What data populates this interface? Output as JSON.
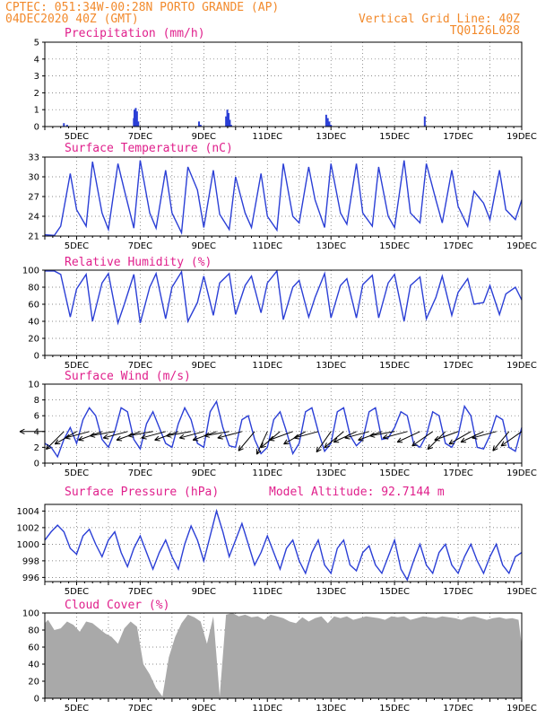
{
  "header": {
    "line1": "CPTEC:  051:34W-00:28N  PORTO GRANDE (AP)",
    "line2": "04DEC2020 40Z (GMT)",
    "right1": "Vertical Grid Line: 40Z",
    "right2": "TQ0126L028"
  },
  "colors": {
    "line": "#2b3fd6",
    "title": "#e0208c",
    "header": "#f28a2c",
    "cloud": "#a9a9a9"
  },
  "chart_data": [
    {
      "id": "precip",
      "type": "bar",
      "title": "Precipitation (mm/h)",
      "ylim": [
        0,
        5
      ],
      "yticks": [
        0,
        1,
        2,
        3,
        4,
        5
      ],
      "x_ticks": [
        "5DEC",
        "7DEC",
        "9DEC",
        "11DEC",
        "13DEC",
        "15DEC",
        "17DEC",
        "19DEC"
      ],
      "x": [
        4.6,
        4.7,
        6.8,
        6.82,
        6.86,
        6.9,
        6.94,
        8.85,
        8.9,
        9.7,
        9.74,
        9.78,
        9.82,
        9.86,
        12.85,
        12.9,
        12.95,
        13.0,
        15.95
      ],
      "values": [
        0.2,
        0.1,
        0.5,
        1.0,
        1.1,
        0.9,
        0.3,
        0.3,
        0.1,
        0.6,
        1.0,
        0.8,
        0.4,
        0.1,
        0.7,
        0.5,
        0.3,
        0.1,
        0.6
      ]
    },
    {
      "id": "temp",
      "type": "line",
      "title": "Surface Temperature (nC)",
      "ylim": [
        21,
        33
      ],
      "yticks": [
        21,
        24,
        27,
        30,
        33
      ],
      "x_ticks": [
        "5DEC",
        "7DEC",
        "9DEC",
        "11DEC",
        "13DEC",
        "15DEC",
        "17DEC",
        "19DEC"
      ],
      "x": [
        4.0,
        4.3,
        4.5,
        4.8,
        5.0,
        5.3,
        5.5,
        5.8,
        6.0,
        6.3,
        6.5,
        6.8,
        7.0,
        7.3,
        7.5,
        7.8,
        8.0,
        8.3,
        8.5,
        8.8,
        9.0,
        9.3,
        9.5,
        9.8,
        10.0,
        10.3,
        10.5,
        10.8,
        11.0,
        11.3,
        11.5,
        11.8,
        12.0,
        12.3,
        12.5,
        12.8,
        13.0,
        13.3,
        13.5,
        13.8,
        14.0,
        14.3,
        14.5,
        14.8,
        15.0,
        15.3,
        15.5,
        15.8,
        16.0,
        16.3,
        16.5,
        16.8,
        17.0,
        17.3,
        17.5,
        17.8,
        18.0,
        18.3,
        18.5,
        18.8,
        19.0
      ],
      "values": [
        21.2,
        21.1,
        22.5,
        30.5,
        25.0,
        22.5,
        32.3,
        24.5,
        22.0,
        32.0,
        28.0,
        22.2,
        32.5,
        24.5,
        22.2,
        31.0,
        24.5,
        21.5,
        31.5,
        28.0,
        22.3,
        31.0,
        24.3,
        22.0,
        30.0,
        24.5,
        22.3,
        30.5,
        24.0,
        21.9,
        32.0,
        24.0,
        23.0,
        31.5,
        26.5,
        22.3,
        32.0,
        24.5,
        22.8,
        32.0,
        24.5,
        22.5,
        31.5,
        24.0,
        22.3,
        32.5,
        24.5,
        23.0,
        32.0,
        26.5,
        23.0,
        31.0,
        25.5,
        22.5,
        27.8,
        26.0,
        23.5,
        31.0,
        25.0,
        23.5,
        26.5
      ]
    },
    {
      "id": "rh",
      "type": "line",
      "title": "Relative Humidity (%)",
      "ylim": [
        0,
        100
      ],
      "yticks": [
        0,
        20,
        40,
        60,
        80,
        100
      ],
      "x_ticks": [
        "5DEC",
        "7DEC",
        "9DEC",
        "11DEC",
        "13DEC",
        "15DEC",
        "17DEC",
        "19DEC"
      ],
      "x": [
        4.0,
        4.3,
        4.5,
        4.8,
        5.0,
        5.3,
        5.5,
        5.8,
        6.0,
        6.3,
        6.5,
        6.8,
        7.0,
        7.3,
        7.5,
        7.8,
        8.0,
        8.3,
        8.5,
        8.8,
        9.0,
        9.3,
        9.5,
        9.8,
        10.0,
        10.3,
        10.5,
        10.8,
        11.0,
        11.3,
        11.5,
        11.8,
        12.0,
        12.3,
        12.5,
        12.8,
        13.0,
        13.3,
        13.5,
        13.8,
        14.0,
        14.3,
        14.5,
        14.8,
        15.0,
        15.3,
        15.5,
        15.8,
        16.0,
        16.3,
        16.5,
        16.8,
        17.0,
        17.3,
        17.5,
        17.8,
        18.0,
        18.3,
        18.5,
        18.8,
        19.0
      ],
      "values": [
        99,
        99,
        95,
        45,
        78,
        95,
        40,
        85,
        96,
        38,
        60,
        95,
        38,
        80,
        96,
        43,
        80,
        98,
        40,
        62,
        93,
        47,
        85,
        96,
        48,
        82,
        93,
        50,
        85,
        99,
        42,
        80,
        88,
        45,
        68,
        96,
        44,
        82,
        90,
        44,
        83,
        94,
        44,
        85,
        95,
        40,
        82,
        92,
        43,
        68,
        93,
        47,
        74,
        90,
        60,
        62,
        82,
        48,
        72,
        80,
        65
      ]
    },
    {
      "id": "wind",
      "type": "line",
      "title": "Surface Wind (m/s)",
      "ylim": [
        0,
        10
      ],
      "yticks": [
        0,
        2,
        4,
        6,
        8,
        10
      ],
      "x_ticks": [
        "5DEC",
        "7DEC",
        "9DEC",
        "11DEC",
        "13DEC",
        "15DEC",
        "17DEC",
        "19DEC"
      ],
      "x": [
        4.0,
        4.2,
        4.4,
        4.6,
        4.8,
        5.0,
        5.2,
        5.4,
        5.6,
        5.8,
        6.0,
        6.2,
        6.4,
        6.6,
        6.8,
        7.0,
        7.2,
        7.4,
        7.6,
        7.8,
        8.0,
        8.2,
        8.4,
        8.6,
        8.8,
        9.0,
        9.2,
        9.4,
        9.6,
        9.8,
        10.0,
        10.2,
        10.4,
        10.6,
        10.8,
        11.0,
        11.2,
        11.4,
        11.6,
        11.8,
        12.0,
        12.2,
        12.4,
        12.6,
        12.8,
        13.0,
        13.2,
        13.4,
        13.6,
        13.8,
        14.0,
        14.2,
        14.4,
        14.6,
        14.8,
        15.0,
        15.2,
        15.4,
        15.6,
        15.8,
        16.0,
        16.2,
        16.4,
        16.6,
        16.8,
        17.0,
        17.2,
        17.4,
        17.6,
        17.8,
        18.0,
        18.2,
        18.4,
        18.6,
        18.8,
        19.0
      ],
      "values": [
        2.5,
        2.0,
        0.8,
        3.0,
        4.5,
        2.5,
        5.5,
        7.0,
        6.0,
        3.0,
        2.0,
        4.0,
        7.0,
        6.5,
        3.0,
        1.8,
        5.0,
        6.5,
        4.5,
        2.5,
        2.0,
        5.0,
        7.0,
        5.5,
        2.5,
        2.0,
        6.5,
        7.8,
        4.5,
        2.2,
        2.0,
        5.5,
        6.0,
        3.0,
        1.2,
        2.0,
        5.5,
        6.5,
        4.0,
        1.2,
        2.5,
        6.5,
        7.0,
        4.0,
        1.5,
        2.5,
        6.5,
        7.0,
        3.5,
        2.2,
        3.0,
        6.5,
        7.0,
        3.0,
        3.2,
        4.5,
        6.5,
        6.0,
        2.5,
        2.0,
        3.5,
        6.5,
        6.0,
        2.5,
        2.0,
        3.5,
        7.2,
        6.0,
        2.0,
        1.8,
        3.5,
        6.0,
        5.5,
        2.0,
        1.5,
        4.5
      ],
      "arrows": {
        "x": [
          4.0,
          4.6,
          5.0,
          5.4,
          5.8,
          6.2,
          6.6,
          7.0,
          7.4,
          7.8,
          8.2,
          8.6,
          9.0,
          9.4,
          9.8,
          10.2,
          10.6,
          11.0,
          11.4,
          11.8,
          12.2,
          12.6,
          13.0,
          13.4,
          13.8,
          14.2,
          14.6,
          15.0,
          15.4,
          15.8,
          16.2,
          16.6,
          17.0,
          17.4,
          17.8,
          18.2,
          18.6,
          19.0
        ],
        "dir_deg": [
          180,
          225,
          210,
          195,
          200,
          190,
          195,
          200,
          190,
          195,
          200,
          190,
          195,
          200,
          190,
          195,
          230,
          245,
          220,
          200,
          210,
          195,
          235,
          220,
          205,
          195,
          200,
          190,
          195,
          205,
          215,
          225,
          200,
          210,
          205,
          195,
          230,
          215
        ]
      }
    },
    {
      "id": "pressure",
      "type": "line",
      "title": "Surface Pressure (hPa)",
      "annotation": "Model Altitude: 92.7144 m",
      "ylim": [
        995.5,
        1004.8
      ],
      "yticks": [
        996,
        998,
        1000,
        1002,
        1004
      ],
      "x_ticks": [
        "5DEC",
        "7DEC",
        "9DEC",
        "11DEC",
        "13DEC",
        "15DEC",
        "17DEC",
        "19DEC"
      ],
      "x": [
        4.0,
        4.2,
        4.4,
        4.6,
        4.8,
        5.0,
        5.2,
        5.4,
        5.6,
        5.8,
        6.0,
        6.2,
        6.4,
        6.6,
        6.8,
        7.0,
        7.2,
        7.4,
        7.6,
        7.8,
        8.0,
        8.2,
        8.4,
        8.6,
        8.8,
        9.0,
        9.2,
        9.4,
        9.6,
        9.8,
        10.0,
        10.2,
        10.4,
        10.6,
        10.8,
        11.0,
        11.2,
        11.4,
        11.6,
        11.8,
        12.0,
        12.2,
        12.4,
        12.6,
        12.8,
        13.0,
        13.2,
        13.4,
        13.6,
        13.8,
        14.0,
        14.2,
        14.4,
        14.6,
        14.8,
        15.0,
        15.2,
        15.4,
        15.6,
        15.8,
        16.0,
        16.2,
        16.4,
        16.6,
        16.8,
        17.0,
        17.2,
        17.4,
        17.6,
        17.8,
        18.0,
        18.2,
        18.4,
        18.6,
        18.8,
        19.0
      ],
      "values": [
        1000.5,
        1001.5,
        1002.3,
        1001.5,
        999.5,
        998.8,
        1001.0,
        1001.8,
        1000.0,
        998.5,
        1000.5,
        1001.5,
        999.0,
        997.3,
        999.5,
        1001.0,
        999.0,
        997.0,
        999.0,
        1000.5,
        998.5,
        997.0,
        1000.0,
        1002.2,
        1000.5,
        998.0,
        1001.0,
        1004.0,
        1001.5,
        998.5,
        1000.5,
        1002.5,
        1000.0,
        997.5,
        999.0,
        1001.0,
        999.0,
        997.0,
        999.5,
        1000.5,
        998.0,
        996.5,
        999.0,
        1000.5,
        997.5,
        996.5,
        999.5,
        1000.5,
        997.5,
        996.8,
        999.0,
        999.8,
        997.5,
        996.5,
        998.5,
        1000.5,
        997.0,
        995.7,
        998.0,
        1000.0,
        997.5,
        996.5,
        999.0,
        1000.0,
        997.5,
        996.5,
        998.5,
        1000.0,
        998.0,
        996.5,
        998.5,
        1000.0,
        997.5,
        996.5,
        998.5,
        999.0
      ]
    },
    {
      "id": "cloud",
      "type": "area",
      "title": "Cloud Cover (%)",
      "ylim": [
        0,
        100
      ],
      "yticks": [
        0,
        20,
        40,
        60,
        80,
        100
      ],
      "x_ticks": [
        "5DEC",
        "7DEC",
        "9DEC",
        "11DEC",
        "13DEC",
        "15DEC",
        "17DEC",
        "19DEC"
      ],
      "x": [
        4.0,
        4.1,
        4.3,
        4.5,
        4.7,
        4.9,
        5.1,
        5.3,
        5.5,
        5.7,
        5.9,
        6.1,
        6.3,
        6.5,
        6.7,
        6.9,
        7.1,
        7.3,
        7.5,
        7.7,
        7.9,
        8.1,
        8.3,
        8.5,
        8.7,
        8.9,
        9.1,
        9.3,
        9.5,
        9.7,
        9.9,
        10.1,
        10.3,
        10.5,
        10.7,
        10.9,
        11.1,
        11.3,
        11.5,
        11.7,
        11.9,
        12.1,
        12.3,
        12.5,
        12.7,
        12.9,
        13.1,
        13.3,
        13.5,
        13.7,
        13.9,
        14.1,
        14.3,
        14.5,
        14.7,
        14.9,
        15.1,
        15.3,
        15.5,
        15.7,
        15.9,
        16.1,
        16.3,
        16.5,
        16.7,
        16.9,
        17.1,
        17.3,
        17.5,
        17.7,
        17.9,
        18.1,
        18.3,
        18.5,
        18.7,
        18.9,
        19.0
      ],
      "values": [
        88,
        92,
        80,
        82,
        90,
        86,
        78,
        90,
        88,
        82,
        76,
        72,
        64,
        82,
        90,
        84,
        40,
        28,
        12,
        2,
        48,
        72,
        88,
        98,
        95,
        90,
        64,
        96,
        2,
        98,
        100,
        96,
        98,
        95,
        96,
        92,
        98,
        96,
        94,
        90,
        88,
        95,
        90,
        94,
        96,
        88,
        96,
        94,
        96,
        92,
        94,
        96,
        95,
        94,
        92,
        96,
        95,
        96,
        92,
        94,
        96,
        95,
        94,
        96,
        95,
        94,
        92,
        95,
        96,
        94,
        92,
        94,
        95,
        93,
        94,
        92,
        62
      ]
    }
  ]
}
